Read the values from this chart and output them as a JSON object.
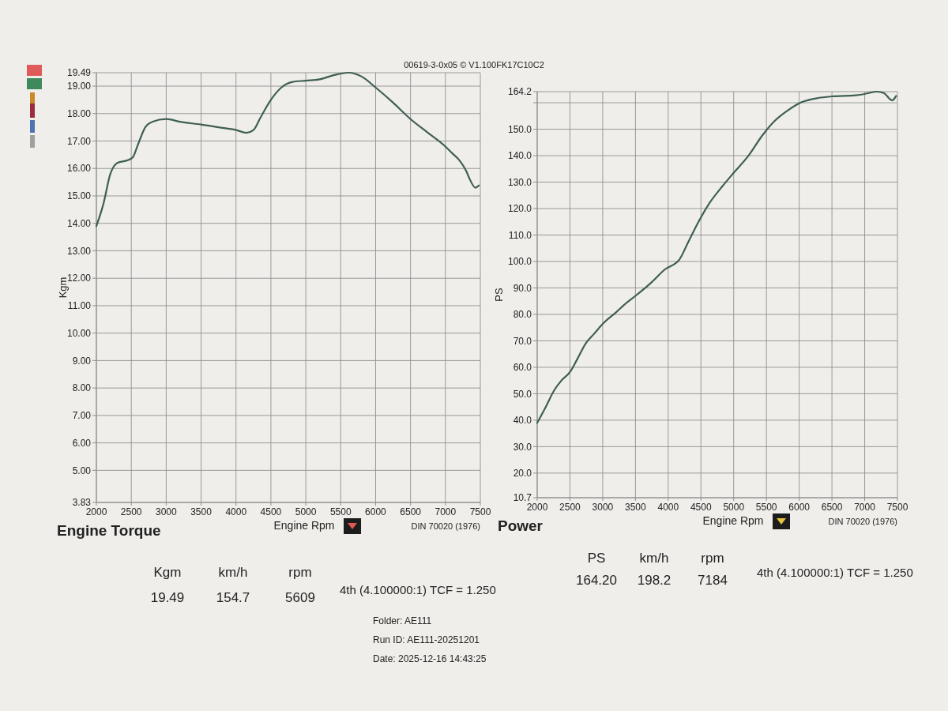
{
  "chart_data": [
    {
      "type": "line",
      "title": "Engine Torque",
      "xlabel": "Engine Rpm",
      "ylabel": "Kgm",
      "annotations": [
        "DIN 70020 (1976)",
        "Kgm",
        "km/h",
        "rpm",
        "19.49",
        "154.7",
        "5609",
        "4th (4.100000:1) TCF = 1.250"
      ],
      "xlim": [
        2000,
        7500
      ],
      "xticks": [
        2000,
        2500,
        3000,
        3500,
        4000,
        4500,
        5000,
        5500,
        6000,
        6500,
        7000,
        7500
      ],
      "ylim": [
        3.83,
        19.49
      ],
      "yticks": [
        3.83,
        {
          "value": 5,
          "label": "5.00"
        },
        {
          "value": 6,
          "label": "6.00"
        },
        {
          "value": 7,
          "label": "7.00"
        },
        {
          "value": 8,
          "label": "8.00"
        },
        {
          "value": 9,
          "label": "9.00"
        },
        {
          "value": 10,
          "label": "10.00"
        },
        {
          "value": 11,
          "label": "11.00"
        },
        {
          "value": 12,
          "label": "12.00"
        },
        {
          "value": 13,
          "label": "13.00"
        },
        {
          "value": 14,
          "label": "14.00"
        },
        {
          "value": 15,
          "label": "15.00"
        },
        {
          "value": 16,
          "label": "16.00"
        },
        {
          "value": 17,
          "label": "17.00"
        },
        {
          "value": 18,
          "label": "18.00"
        },
        {
          "value": 19,
          "label": "19.00"
        },
        19.49
      ],
      "grid": true,
      "color": "#3f5f52",
      "x": [
        2000,
        2100,
        2200,
        2300,
        2450,
        2520,
        2600,
        2700,
        2800,
        3000,
        3200,
        3500,
        3750,
        4000,
        4150,
        4250,
        4350,
        4500,
        4650,
        4800,
        5000,
        5200,
        5400,
        5609,
        5800,
        6000,
        6250,
        6500,
        6750,
        7000,
        7100,
        7200,
        7300,
        7350,
        7430,
        7480
      ],
      "values": [
        13.9,
        14.7,
        15.8,
        16.2,
        16.3,
        16.4,
        16.9,
        17.5,
        17.7,
        17.8,
        17.7,
        17.6,
        17.5,
        17.4,
        17.3,
        17.4,
        17.85,
        18.5,
        18.95,
        19.15,
        19.2,
        19.25,
        19.4,
        19.49,
        19.35,
        18.95,
        18.4,
        17.8,
        17.3,
        16.8,
        16.55,
        16.3,
        15.9,
        15.6,
        15.3,
        15.38
      ]
    },
    {
      "type": "line",
      "title": "Power",
      "xlabel": "Engine Rpm",
      "ylabel": "PS",
      "annotations": [
        "DIN 70020 (1976)",
        "PS",
        "km/h",
        "rpm",
        "164.20",
        "198.2",
        "7184",
        "4th (4.100000:1) TCF = 1.250"
      ],
      "xlim": [
        2000,
        7500
      ],
      "xticks": [
        2000,
        2500,
        3000,
        3500,
        4000,
        4500,
        5000,
        5500,
        6000,
        6500,
        7000,
        7500
      ],
      "ylim": [
        10.7,
        164.2
      ],
      "yticks": [
        10.7,
        {
          "value": 20,
          "label": "20.0"
        },
        {
          "value": 30,
          "label": "30.0"
        },
        {
          "value": 40,
          "label": "40.0"
        },
        {
          "value": 50,
          "label": "50.0"
        },
        {
          "value": 60,
          "label": "60.0"
        },
        {
          "value": 70,
          "label": "70.0"
        },
        {
          "value": 80,
          "label": "80.0"
        },
        {
          "value": 90,
          "label": "90.0"
        },
        {
          "value": 100,
          "label": "100.0"
        },
        {
          "value": 110,
          "label": "110.0"
        },
        {
          "value": 120,
          "label": "120.0"
        },
        {
          "value": 130,
          "label": "130.0"
        },
        {
          "value": 140,
          "label": "140.0"
        },
        {
          "value": 150,
          "label": "150.0"
        },
        {
          "value": 160,
          "label": null
        },
        164.2
      ],
      "grid": true,
      "color": "#3f5f52",
      "x": [
        2000,
        2130,
        2260,
        2370,
        2500,
        2610,
        2740,
        2870,
        3000,
        3200,
        3370,
        3500,
        3750,
        3950,
        4170,
        4300,
        4450,
        4620,
        4830,
        5000,
        5230,
        5430,
        5620,
        5820,
        6000,
        6290,
        6500,
        6860,
        7000,
        7100,
        7184,
        7290,
        7420,
        7480
      ],
      "values": [
        39.0,
        45.0,
        51.3,
        55.0,
        58.2,
        63.0,
        69.0,
        72.7,
        76.4,
        80.7,
        84.5,
        87.0,
        92.2,
        97.0,
        100.7,
        107.0,
        114.4,
        121.7,
        128.5,
        133.5,
        140.1,
        147.4,
        153.0,
        157.0,
        159.8,
        161.8,
        162.4,
        162.8,
        163.3,
        163.9,
        164.2,
        163.7,
        160.9,
        162.6
      ]
    },
    {
      "type": "other",
      "title": "00619-3-0x05 © V1.100FK17C10C2",
      "annotations": [
        "Folder: AE111",
        "Run ID: AE111-20251201",
        "Date: 2025-12-16 14:43:25"
      ]
    }
  ]
}
